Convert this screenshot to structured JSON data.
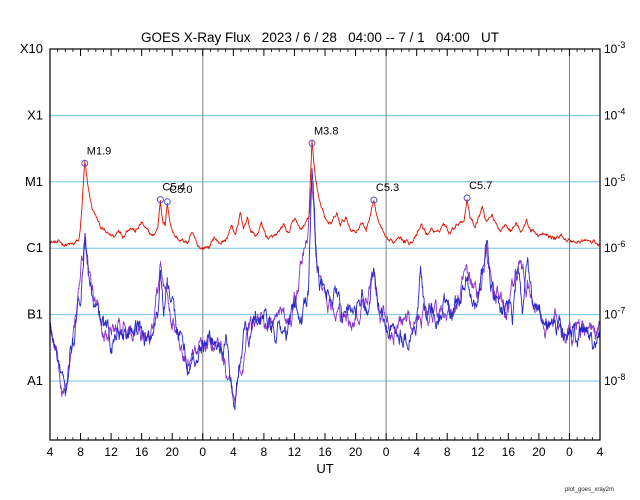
{
  "title": "GOES X-Ray Flux   2023 / 6 / 28   04:00 -- 7 / 1   04:00   UT",
  "watermark": "plot_goes_xray2m",
  "chart_data": {
    "type": "line",
    "title": "GOES X-Ray Flux 2023/6/28 04:00 -- 7/1 04:00 UT",
    "xlabel": "UT",
    "x_start_hour": 4,
    "x_hours_span": 72,
    "x_tick_interval": 4,
    "x_tick_labels": [
      "4",
      "8",
      "12",
      "16",
      "20",
      "0",
      "4",
      "8",
      "12",
      "16",
      "20",
      "0",
      "4",
      "8",
      "12",
      "16",
      "20",
      "0",
      "4"
    ],
    "y_scale": "log",
    "y_range_wm2": [
      1e-09,
      0.001
    ],
    "y_left_labels": [
      {
        "label": "X10",
        "value": 0.001
      },
      {
        "label": "X1",
        "value": 0.0001
      },
      {
        "label": "M1",
        "value": 1e-05
      },
      {
        "label": "C1",
        "value": 1e-06
      },
      {
        "label": "B1",
        "value": 1e-07
      },
      {
        "label": "A1",
        "value": 1e-08
      }
    ],
    "y_right_exponent_labels": [
      {
        "exp": "-3",
        "value": 0.001
      },
      {
        "exp": "-4",
        "value": 0.0001
      },
      {
        "exp": "-5",
        "value": 1e-05
      },
      {
        "exp": "-6",
        "value": 1e-06
      },
      {
        "exp": "-7",
        "value": 1e-07
      },
      {
        "exp": "-8",
        "value": 1e-08
      }
    ],
    "grid_h_values": [
      0.0001,
      1e-05,
      1e-06,
      1e-07,
      1e-08
    ],
    "grid_v_hour_offsets": [
      20,
      44,
      68
    ],
    "colors": {
      "long_channel": "#dd1100",
      "short_channel_a": "#2929c8",
      "short_channel_b": "#8833cc",
      "grid_h": "#6ec6e8",
      "grid_v": "#808080",
      "axis": "#000000",
      "annotation_marker": "#5050c8"
    },
    "annotations": [
      {
        "label": "M1.9",
        "hour_offset": 4.55,
        "flux": 1.9e-05
      },
      {
        "label": "C5.4",
        "hour_offset": 14.45,
        "flux": 5.4e-06
      },
      {
        "label": "C5.0",
        "hour_offset": 15.35,
        "flux": 5e-06
      },
      {
        "label": "M3.8",
        "hour_offset": 34.3,
        "flux": 3.8e-05
      },
      {
        "label": "C5.3",
        "hour_offset": 42.4,
        "flux": 5.3e-06
      },
      {
        "label": "C5.7",
        "hour_offset": 54.6,
        "flux": 5.7e-06
      }
    ],
    "series": [
      {
        "name": "short-channel-b",
        "color_key": "short_channel_b",
        "noise": 0.38,
        "seed": 424242,
        "points": [
          [
            0,
            5e-08
          ],
          [
            1,
            2e-08
          ],
          [
            2,
            6e-09
          ],
          [
            3,
            4e-08
          ],
          [
            4.55,
            1.4e-06
          ],
          [
            5.5,
            1.5e-07
          ],
          [
            7,
            5e-08
          ],
          [
            9,
            6e-08
          ],
          [
            11,
            6.5e-08
          ],
          [
            13,
            4.5e-08
          ],
          [
            14.45,
            4e-07
          ],
          [
            16,
            8e-08
          ],
          [
            18,
            2e-08
          ],
          [
            20,
            3.5e-08
          ],
          [
            22,
            4e-08
          ],
          [
            23.7,
            8e-09
          ],
          [
            24.2,
            4e-09
          ],
          [
            26,
            6e-08
          ],
          [
            28,
            9e-08
          ],
          [
            30,
            5.5e-08
          ],
          [
            32,
            1.2e-07
          ],
          [
            34.3,
            6e-06
          ],
          [
            35,
            5e-07
          ],
          [
            36,
            1.5e-07
          ],
          [
            38,
            1e-07
          ],
          [
            40,
            9e-08
          ],
          [
            42.4,
            4.5e-07
          ],
          [
            43.2,
            9e-08
          ],
          [
            45,
            5.5e-08
          ],
          [
            47,
            6e-08
          ],
          [
            49,
            1e-07
          ],
          [
            51,
            9e-08
          ],
          [
            53,
            1.5e-07
          ],
          [
            54.6,
            4e-07
          ],
          [
            56,
            1.8e-07
          ],
          [
            57.2,
            9e-07
          ],
          [
            58,
            1.8e-07
          ],
          [
            60,
            1.3e-07
          ],
          [
            61.3,
            5e-07
          ],
          [
            62.5,
            3e-07
          ],
          [
            64,
            9e-08
          ],
          [
            66,
            7e-08
          ],
          [
            68,
            5.5e-08
          ],
          [
            70,
            5.5e-08
          ],
          [
            72,
            5e-08
          ]
        ]
      },
      {
        "name": "short-channel-a",
        "color_key": "short_channel_a",
        "noise": 0.38,
        "seed": 777,
        "points": [
          [
            0,
            6e-08
          ],
          [
            0.7,
            3e-08
          ],
          [
            1.4,
            1.2e-08
          ],
          [
            2,
            5e-09
          ],
          [
            2.6,
            2.5e-08
          ],
          [
            3.3,
            5e-08
          ],
          [
            4.1,
            2.5e-07
          ],
          [
            4.55,
            1.8e-06
          ],
          [
            5,
            4e-07
          ],
          [
            5.8,
            1.2e-07
          ],
          [
            7,
            6e-08
          ],
          [
            8,
            4e-08
          ],
          [
            9,
            7e-08
          ],
          [
            10,
            5e-08
          ],
          [
            11,
            8e-08
          ],
          [
            12,
            6e-08
          ],
          [
            13,
            4e-08
          ],
          [
            14.1,
            1e-07
          ],
          [
            14.45,
            5.5e-07
          ],
          [
            14.9,
            1.5e-07
          ],
          [
            15.35,
            4.5e-07
          ],
          [
            15.9,
            1.2e-07
          ],
          [
            16.6,
            6e-08
          ],
          [
            17.5,
            3e-08
          ],
          [
            18.3,
            1.5e-08
          ],
          [
            19.2,
            2.5e-08
          ],
          [
            20,
            3e-08
          ],
          [
            21,
            4.5e-08
          ],
          [
            22,
            3.5e-08
          ],
          [
            23,
            4e-08
          ],
          [
            23.7,
            1e-08
          ],
          [
            24.2,
            3.5e-09
          ],
          [
            24.8,
            2e-08
          ],
          [
            25.5,
            7e-08
          ],
          [
            26.2,
            5e-08
          ],
          [
            26.9,
            1.4e-07
          ],
          [
            27.6,
            6e-08
          ],
          [
            28.3,
            1.1e-07
          ],
          [
            29,
            5e-08
          ],
          [
            30,
            6.5e-08
          ],
          [
            31,
            5e-08
          ],
          [
            32.1,
            1.4e-07
          ],
          [
            32.9,
            8e-08
          ],
          [
            33.8,
            2.5e-07
          ],
          [
            34.3,
            1.8e-05
          ],
          [
            34.75,
            1.2e-06
          ],
          [
            35.3,
            4e-07
          ],
          [
            36,
            1.8e-07
          ],
          [
            37,
            1e-07
          ],
          [
            37.5,
            2e-07
          ],
          [
            38.2,
            9e-08
          ],
          [
            39,
            1.3e-07
          ],
          [
            40,
            8e-08
          ],
          [
            40.8,
            1.5e-07
          ],
          [
            41.4,
            1e-07
          ],
          [
            42.4,
            5.5e-07
          ],
          [
            43,
            1.5e-07
          ],
          [
            43.6,
            8e-08
          ],
          [
            44,
            6e-08
          ],
          [
            45,
            5e-08
          ],
          [
            46,
            6.5e-08
          ],
          [
            47,
            5e-08
          ],
          [
            48,
            7e-08
          ],
          [
            48.5,
            4e-07
          ],
          [
            49.1,
            9e-08
          ],
          [
            50,
            1.2e-07
          ],
          [
            51,
            8e-08
          ],
          [
            51.8,
            1.6e-07
          ],
          [
            52.6,
            1e-07
          ],
          [
            53.5,
            1.8e-07
          ],
          [
            54.6,
            5e-07
          ],
          [
            55.1,
            2e-07
          ],
          [
            55.8,
            1.3e-07
          ],
          [
            56.6,
            4e-07
          ],
          [
            57.2,
            1.2e-06
          ],
          [
            57.7,
            3e-07
          ],
          [
            58.4,
            1.4e-07
          ],
          [
            59.1,
            1e-07
          ],
          [
            59.8,
            2e-07
          ],
          [
            60.5,
            1.1e-07
          ],
          [
            61.3,
            7e-07
          ],
          [
            61.8,
            1.6e-07
          ],
          [
            62.5,
            4e-07
          ],
          [
            63.2,
            1.1e-07
          ],
          [
            64,
            8e-08
          ],
          [
            65,
            6e-08
          ],
          [
            66,
            7.5e-08
          ],
          [
            67,
            5.5e-08
          ],
          [
            68,
            6e-08
          ],
          [
            69,
            4.5e-08
          ],
          [
            70,
            6.5e-08
          ],
          [
            71,
            5e-08
          ],
          [
            72,
            5.5e-08
          ]
        ]
      },
      {
        "name": "long-channel",
        "color_key": "long_channel",
        "noise": 0.09,
        "seed": 12345,
        "points": [
          [
            0,
            1.3e-06
          ],
          [
            1,
            1.2e-06
          ],
          [
            2,
            1.15e-06
          ],
          [
            3,
            1.1e-06
          ],
          [
            3.8,
            1.3e-06
          ],
          [
            4.1,
            3e-06
          ],
          [
            4.55,
            1.9e-05
          ],
          [
            4.9,
            9e-06
          ],
          [
            5.5,
            4e-06
          ],
          [
            6.5,
            2.2e-06
          ],
          [
            7.5,
            1.6e-06
          ],
          [
            8.5,
            1.5e-06
          ],
          [
            9,
            2e-06
          ],
          [
            9.5,
            1.6e-06
          ],
          [
            10.5,
            2.2e-06
          ],
          [
            11.2,
            1.8e-06
          ],
          [
            12,
            2.4e-06
          ],
          [
            12.8,
            1.7e-06
          ],
          [
            13.5,
            1.5e-06
          ],
          [
            14.1,
            2e-06
          ],
          [
            14.45,
            5.4e-06
          ],
          [
            14.8,
            2.5e-06
          ],
          [
            15.1,
            2.2e-06
          ],
          [
            15.35,
            5e-06
          ],
          [
            15.7,
            2.5e-06
          ],
          [
            16.3,
            1.6e-06
          ],
          [
            17,
            1.3e-06
          ],
          [
            18,
            1.2e-06
          ],
          [
            18.6,
            1.6e-06
          ],
          [
            19.3,
            1.1e-06
          ],
          [
            20,
            1e-06
          ],
          [
            21,
            1.1e-06
          ],
          [
            21.5,
            1.5e-06
          ],
          [
            22,
            1.2e-06
          ],
          [
            23,
            1.3e-06
          ],
          [
            23.8,
            2.2e-06
          ],
          [
            24.3,
            1.6e-06
          ],
          [
            24.9,
            3.2e-06
          ],
          [
            25.3,
            2e-06
          ],
          [
            25.8,
            2.8e-06
          ],
          [
            26.3,
            1.8e-06
          ],
          [
            27,
            1.5e-06
          ],
          [
            27.7,
            2.4e-06
          ],
          [
            28.3,
            1.5e-06
          ],
          [
            29,
            1.4e-06
          ],
          [
            30,
            1.6e-06
          ],
          [
            30.6,
            2.2e-06
          ],
          [
            31.2,
            1.6e-06
          ],
          [
            32.1,
            2.8e-06
          ],
          [
            32.7,
            1.9e-06
          ],
          [
            33.4,
            2.2e-06
          ],
          [
            33.9,
            3e-06
          ],
          [
            34.3,
            3.8e-05
          ],
          [
            34.7,
            1.3e-05
          ],
          [
            35.3,
            5e-06
          ],
          [
            36,
            3e-06
          ],
          [
            36.8,
            2.2e-06
          ],
          [
            37.5,
            3.2e-06
          ],
          [
            38,
            2.2e-06
          ],
          [
            38.7,
            2.8e-06
          ],
          [
            39.3,
            2e-06
          ],
          [
            40,
            1.8e-06
          ],
          [
            40.7,
            2.4e-06
          ],
          [
            41.4,
            1.9e-06
          ],
          [
            42.4,
            5.3e-06
          ],
          [
            42.9,
            2.6e-06
          ],
          [
            43.5,
            1.8e-06
          ],
          [
            44,
            1.25e-06
          ],
          [
            45,
            1.2e-06
          ],
          [
            45.7,
            1.7e-06
          ],
          [
            46.3,
            1.3e-06
          ],
          [
            47,
            1.25e-06
          ],
          [
            48,
            1.5e-06
          ],
          [
            48.6,
            2.2e-06
          ],
          [
            49.3,
            1.6e-06
          ],
          [
            50,
            2e-06
          ],
          [
            50.7,
            1.6e-06
          ],
          [
            51.5,
            2.4e-06
          ],
          [
            52.2,
            1.8e-06
          ],
          [
            53,
            2.2e-06
          ],
          [
            53.7,
            2.6e-06
          ],
          [
            54.2,
            2.8e-06
          ],
          [
            54.6,
            5.7e-06
          ],
          [
            55,
            3e-06
          ],
          [
            55.6,
            2.2e-06
          ],
          [
            56.2,
            3.2e-06
          ],
          [
            56.6,
            4.2e-06
          ],
          [
            57.1,
            2.6e-06
          ],
          [
            57.8,
            3.4e-06
          ],
          [
            58.4,
            2.2e-06
          ],
          [
            59,
            1.9e-06
          ],
          [
            59.7,
            2.6e-06
          ],
          [
            60.3,
            1.9e-06
          ],
          [
            61,
            2.4e-06
          ],
          [
            61.7,
            1.8e-06
          ],
          [
            62.4,
            2.6e-06
          ],
          [
            63,
            1.8e-06
          ],
          [
            64,
            1.6e-06
          ],
          [
            65,
            1.5e-06
          ],
          [
            66,
            1.4e-06
          ],
          [
            67,
            1.5e-06
          ],
          [
            68,
            1.3e-06
          ],
          [
            69,
            1.25e-06
          ],
          [
            70,
            1.3e-06
          ],
          [
            71,
            1.2e-06
          ],
          [
            72,
            1.15e-06
          ]
        ]
      }
    ]
  }
}
